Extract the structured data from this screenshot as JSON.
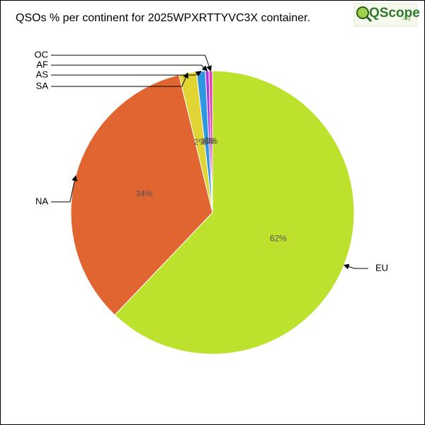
{
  "chart_data": {
    "type": "pie",
    "title": "QSOs % per continent for 2025WPXRTTYVC3X container.",
    "logo": {
      "text": "QScope",
      "suffix": ".org"
    },
    "categories": [
      "EU",
      "NA",
      "SA",
      "AS",
      "AF",
      "OC"
    ],
    "values": [
      62,
      34,
      2,
      1,
      0.4,
      0.4
    ],
    "value_labels": [
      "62%",
      "34%",
      "2%",
      "1%",
      "0%",
      "0%"
    ],
    "colors": [
      "#bde22e",
      "#e06530",
      "#e1d535",
      "#2f97e0",
      "#b034e0",
      "#e040b0"
    ]
  }
}
